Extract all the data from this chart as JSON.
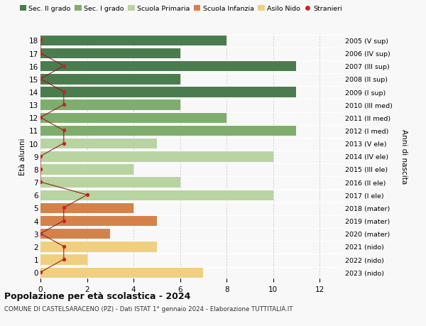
{
  "ages": [
    18,
    17,
    16,
    15,
    14,
    13,
    12,
    11,
    10,
    9,
    8,
    7,
    6,
    5,
    4,
    3,
    2,
    1,
    0
  ],
  "right_labels": [
    "2005 (V sup)",
    "2006 (IV sup)",
    "2007 (III sup)",
    "2008 (II sup)",
    "2009 (I sup)",
    "2010 (III med)",
    "2011 (II med)",
    "2012 (I med)",
    "2013 (V ele)",
    "2014 (IV ele)",
    "2015 (III ele)",
    "2016 (II ele)",
    "2017 (I ele)",
    "2018 (mater)",
    "2019 (mater)",
    "2020 (mater)",
    "2021 (nido)",
    "2022 (nido)",
    "2023 (nido)"
  ],
  "bar_values": [
    8,
    6,
    11,
    6,
    11,
    6,
    8,
    11,
    5,
    10,
    4,
    6,
    10,
    4,
    5,
    3,
    5,
    2,
    7
  ],
  "bar_colors": [
    "#4a7c4e",
    "#4a7c4e",
    "#4a7c4e",
    "#4a7c4e",
    "#4a7c4e",
    "#7fad6e",
    "#7fad6e",
    "#7fad6e",
    "#b8d4a0",
    "#b8d4a0",
    "#b8d4a0",
    "#b8d4a0",
    "#b8d4a0",
    "#d4824a",
    "#d4824a",
    "#d4824a",
    "#f0d080",
    "#f0d080",
    "#f0d080"
  ],
  "stranieri_x": [
    0,
    0,
    1,
    0,
    1,
    1,
    0,
    1,
    1,
    0,
    0,
    0,
    2,
    1,
    1,
    0,
    1,
    1,
    0
  ],
  "legend_labels": [
    "Sec. II grado",
    "Sec. I grado",
    "Scuola Primaria",
    "Scuola Infanzia",
    "Asilo Nido",
    "Stranieri"
  ],
  "legend_colors": [
    "#4a7c4e",
    "#7fad6e",
    "#b8d4a0",
    "#d4824a",
    "#f0d080",
    "#cc2222"
  ],
  "title": "Popolazione per età scolastica - 2024",
  "subtitle": "COMUNE DI CASTELSARACENO (PZ) - Dati ISTAT 1° gennaio 2024 - Elaborazione TUTTITALIA.IT",
  "ylabel": "Età alunni",
  "ylabel2": "Anni di nascita",
  "xlim": [
    0,
    13
  ],
  "xticks": [
    0,
    2,
    4,
    6,
    8,
    10,
    12
  ],
  "background_color": "#f8f8f8",
  "grid_color": "#d0d0d0",
  "stranieri_line_color": "#8b1a1a",
  "stranieri_dot_color": "#cc2222"
}
